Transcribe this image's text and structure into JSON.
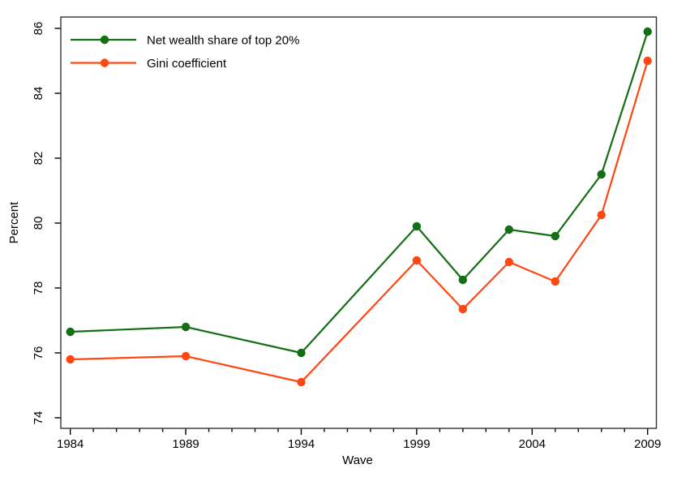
{
  "chart_data": {
    "type": "line",
    "title": "",
    "xlabel": "Wave",
    "ylabel": "Percent",
    "x": [
      1984,
      1989,
      1994,
      1999,
      2001,
      2003,
      2005,
      2007,
      2009
    ],
    "series": [
      {
        "name": "Net wealth share of top 20%",
        "color": "#146e14",
        "values": [
          76.65,
          76.8,
          76.0,
          79.9,
          78.25,
          79.8,
          79.6,
          81.5,
          85.9
        ]
      },
      {
        "name": "Gini coefficient",
        "color": "#ff4713",
        "values": [
          75.8,
          75.9,
          75.1,
          78.85,
          77.35,
          78.8,
          78.2,
          80.25,
          85.0
        ]
      }
    ],
    "y_ticks": [
      74,
      76,
      78,
      80,
      82,
      84,
      86
    ],
    "x_major_ticks": [
      1984,
      1989,
      1994,
      1999,
      2004,
      2009
    ],
    "x_minor_tick_step": 1,
    "xlim": [
      1983.59,
      2009.38
    ],
    "ylim": [
      73.675,
      86.35
    ],
    "grid": false,
    "legend_position": "top-left",
    "marker": "circle",
    "axis_color": "#333333"
  }
}
